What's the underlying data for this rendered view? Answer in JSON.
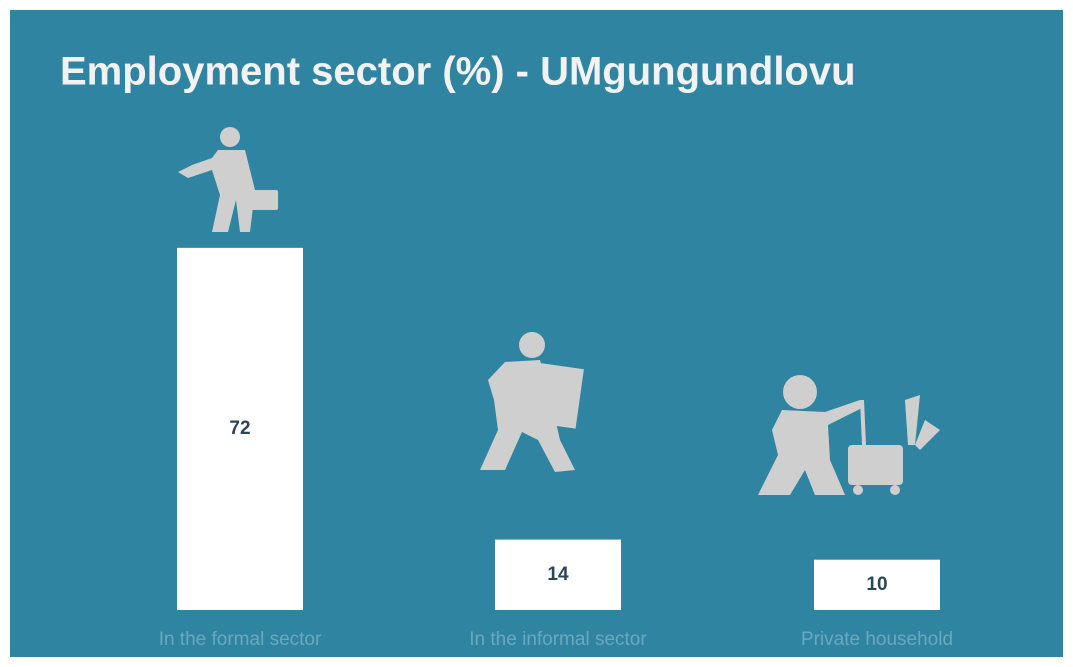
{
  "chart_data": {
    "type": "bar",
    "title": "Employment sector (%) - UMgungundlovu",
    "categories": [
      "In the formal sector",
      "In the informal sector",
      "Private household"
    ],
    "values": [
      72,
      14,
      10
    ],
    "color": "#ffffff"
  }
}
